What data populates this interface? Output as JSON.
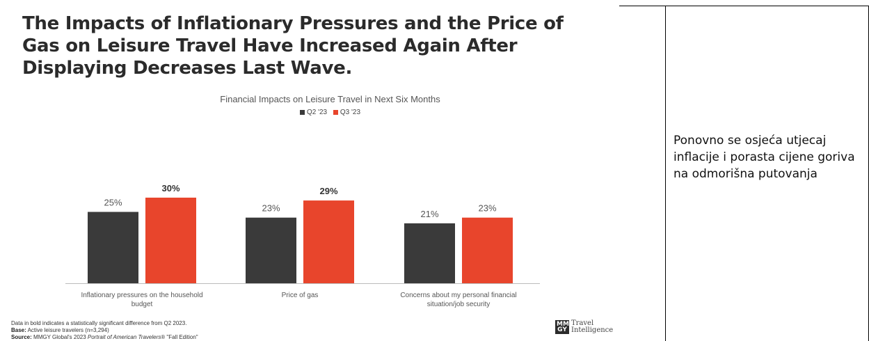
{
  "slide": {
    "title_lines": [
      "The Impacts of Inflationary Pressures and the Price of",
      "Gas on Leisure Travel Have Increased Again After",
      "Displaying Decreases Last Wave."
    ],
    "footnote_line1": "Data in bold indicates a statistically significant difference from Q2 2023.",
    "base_label": "Base:",
    "base_text": "Active leisure travelers (n=3,294)",
    "source_label": "Source:",
    "source_text_a": "MMGY Global's 2023 ",
    "source_text_italic": "Portrait of American Travelers",
    "source_text_b": "® \"Fall Edition\"",
    "logo_mark_top": "MM",
    "logo_mark_bottom": "GY",
    "logo_text_line1": "Travel",
    "logo_text_line2": "Intelligence"
  },
  "side_note": "Ponovno se osjeća utjecaj inflacije i porasta cijene goriva na odmorišna putovanja",
  "chart_data": {
    "type": "bar",
    "title": "Financial Impacts on Leisure Travel in Next Six Months",
    "categories": [
      [
        "Inflationary pressures on the household",
        "budget"
      ],
      [
        "Price of gas"
      ],
      [
        "Concerns about my personal financial",
        "situation/job security"
      ]
    ],
    "series": [
      {
        "name": "Q2 '23",
        "color": "#3a3a3a",
        "values": [
          25,
          23,
          21
        ],
        "labels": [
          "25%",
          "23%",
          "21%"
        ],
        "bold": [
          false,
          false,
          false
        ]
      },
      {
        "name": "Q3 '23",
        "color": "#e8452c",
        "values": [
          30,
          29,
          23
        ],
        "labels": [
          "30%",
          "29%",
          "23%"
        ],
        "bold": [
          true,
          true,
          false
        ]
      }
    ],
    "ylim": [
      0,
      30
    ],
    "grid": false,
    "legend_position": "top-center"
  }
}
